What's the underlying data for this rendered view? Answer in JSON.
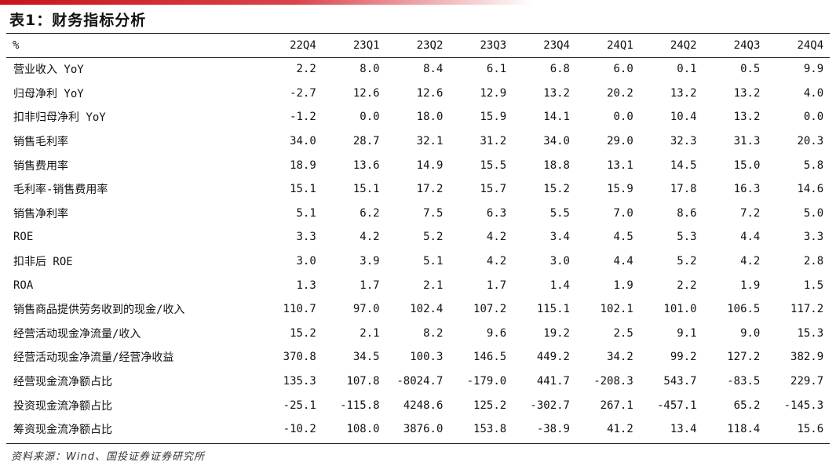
{
  "title": "表1：财务指标分析",
  "table": {
    "unit_label": "%",
    "columns": [
      "22Q4",
      "23Q1",
      "23Q2",
      "23Q3",
      "23Q4",
      "24Q1",
      "24Q2",
      "24Q3",
      "24Q4"
    ],
    "rows": [
      {
        "label": "营业收入 YoY",
        "values": [
          "2.2",
          "8.0",
          "8.4",
          "6.1",
          "6.8",
          "6.0",
          "0.1",
          "0.5",
          "9.9"
        ]
      },
      {
        "label": "归母净利 YoY",
        "values": [
          "-2.7",
          "12.6",
          "12.6",
          "12.9",
          "13.2",
          "20.2",
          "13.2",
          "13.2",
          "4.0"
        ]
      },
      {
        "label": "扣非归母净利 YoY",
        "values": [
          "-1.2",
          "0.0",
          "18.0",
          "15.9",
          "14.1",
          "0.0",
          "10.4",
          "13.2",
          "0.0"
        ]
      },
      {
        "label": "销售毛利率",
        "values": [
          "34.0",
          "28.7",
          "32.1",
          "31.2",
          "34.0",
          "29.0",
          "32.3",
          "31.3",
          "20.3"
        ]
      },
      {
        "label": "销售费用率",
        "values": [
          "18.9",
          "13.6",
          "14.9",
          "15.5",
          "18.8",
          "13.1",
          "14.5",
          "15.0",
          "5.8"
        ]
      },
      {
        "label": "毛利率-销售费用率",
        "values": [
          "15.1",
          "15.1",
          "17.2",
          "15.7",
          "15.2",
          "15.9",
          "17.8",
          "16.3",
          "14.6"
        ]
      },
      {
        "label": "销售净利率",
        "values": [
          "5.1",
          "6.2",
          "7.5",
          "6.3",
          "5.5",
          "7.0",
          "8.6",
          "7.2",
          "5.0"
        ]
      },
      {
        "label": "ROE",
        "values": [
          "3.3",
          "4.2",
          "5.2",
          "4.2",
          "3.4",
          "4.5",
          "5.3",
          "4.4",
          "3.3"
        ]
      },
      {
        "label": "扣非后 ROE",
        "values": [
          "3.0",
          "3.9",
          "5.1",
          "4.2",
          "3.0",
          "4.4",
          "5.2",
          "4.2",
          "2.8"
        ]
      },
      {
        "label": "ROA",
        "values": [
          "1.3",
          "1.7",
          "2.1",
          "1.7",
          "1.4",
          "1.9",
          "2.2",
          "1.9",
          "1.5"
        ]
      },
      {
        "label": "销售商品提供劳务收到的现金/收入",
        "values": [
          "110.7",
          "97.0",
          "102.4",
          "107.2",
          "115.1",
          "102.1",
          "101.0",
          "106.5",
          "117.2"
        ]
      },
      {
        "label": "经营活动现金净流量/收入",
        "values": [
          "15.2",
          "2.1",
          "8.2",
          "9.6",
          "19.2",
          "2.5",
          "9.1",
          "9.0",
          "15.3"
        ]
      },
      {
        "label": "经营活动现金净流量/经营净收益",
        "values": [
          "370.8",
          "34.5",
          "100.3",
          "146.5",
          "449.2",
          "34.2",
          "99.2",
          "127.2",
          "382.9"
        ]
      },
      {
        "label": "经营现金流净额占比",
        "values": [
          "135.3",
          "107.8",
          "-8024.7",
          "-179.0",
          "441.7",
          "-208.3",
          "543.7",
          "-83.5",
          "229.7"
        ]
      },
      {
        "label": "投资现金流净额占比",
        "values": [
          "-25.1",
          "-115.8",
          "4248.6",
          "125.2",
          "-302.7",
          "267.1",
          "-457.1",
          "65.2",
          "-145.3"
        ]
      },
      {
        "label": "筹资现金流净额占比",
        "values": [
          "-10.2",
          "108.0",
          "3876.0",
          "153.8",
          "-38.9",
          "41.2",
          "13.4",
          "118.4",
          "15.6"
        ]
      }
    ]
  },
  "source": "资料来源：Wind、国投证券证券研究所"
}
